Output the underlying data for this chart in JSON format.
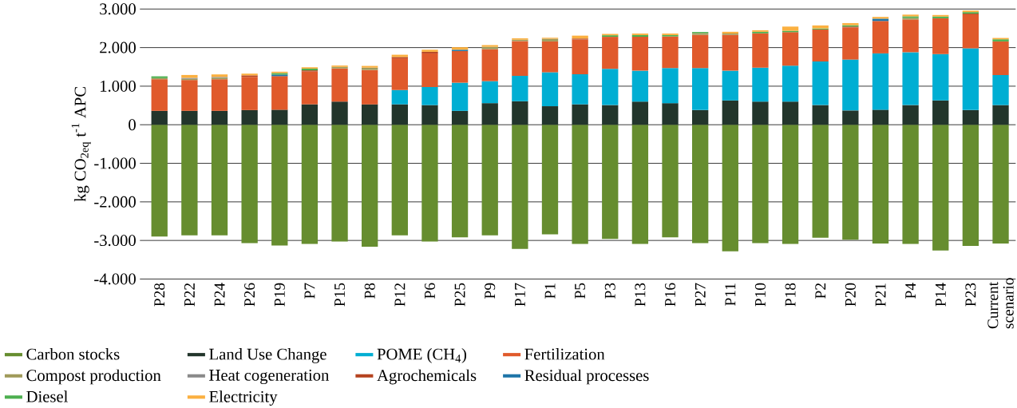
{
  "chart_data": {
    "type": "bar",
    "stacked": true,
    "ylabel": "kg CO$_{2eq}$ t$^{-1}$ APC",
    "categories": [
      "P28",
      "P22",
      "P24",
      "P26",
      "P19",
      "P7",
      "P15",
      "P8",
      "P12",
      "P6",
      "P25",
      "P9",
      "P17",
      "P1",
      "P5",
      "P3",
      "P13",
      "P16",
      "P27",
      "P11",
      "P10",
      "P18",
      "P2",
      "P20",
      "P21",
      "P4",
      "P14",
      "P23",
      "Current scenario"
    ],
    "series": [
      {
        "name": "Carbon stocks",
        "color": "#668d2f",
        "values": [
          -2900,
          -2870,
          -2870,
          -3070,
          -3130,
          -3090,
          -3030,
          -3160,
          -2870,
          -3030,
          -2920,
          -2870,
          -3220,
          -2840,
          -3090,
          -2960,
          -3090,
          -2920,
          -3070,
          -3280,
          -3070,
          -3090,
          -2930,
          -2980,
          -3080,
          -3090,
          -3260,
          -3140,
          -3080
        ]
      },
      {
        "name": "Land Use Change",
        "color": "#22352b",
        "values": [
          360,
          360,
          360,
          380,
          390,
          530,
          600,
          530,
          530,
          510,
          360,
          560,
          610,
          480,
          530,
          510,
          600,
          560,
          380,
          630,
          600,
          600,
          510,
          370,
          390,
          510,
          630,
          380,
          510
        ]
      },
      {
        "name": "POME (CH$_{4}$)",
        "color": "#00aed3",
        "values": [
          null,
          null,
          null,
          null,
          null,
          null,
          null,
          null,
          370,
          470,
          730,
          570,
          660,
          880,
          780,
          940,
          800,
          910,
          1090,
          770,
          880,
          930,
          1130,
          1320,
          1460,
          1370,
          1200,
          1600,
          780
        ]
      },
      {
        "name": "Fertilization",
        "color": "#e05a2b",
        "values": [
          820,
          800,
          820,
          860,
          870,
          850,
          860,
          890,
          820,
          870,
          820,
          830,
          900,
          800,
          900,
          830,
          880,
          820,
          860,
          930,
          890,
          870,
          830,
          830,
          840,
          850,
          930,
          880,
          870
        ]
      },
      {
        "name": "Compost production",
        "color": "#a09a5a",
        "values": [
          30,
          30,
          40,
          null,
          null,
          null,
          40,
          60,
          null,
          null,
          null,
          60,
          35,
          70,
          null,
          null,
          null,
          null,
          45,
          35,
          null,
          null,
          null,
          null,
          null,
          40,
          null,
          null,
          null
        ]
      },
      {
        "name": "Heat cogeneration",
        "color": "#8a8a8a",
        "values": [
          null,
          25,
          20,
          null,
          null,
          null,
          null,
          null,
          null,
          null,
          null,
          null,
          null,
          null,
          null,
          null,
          null,
          null,
          null,
          null,
          null,
          null,
          null,
          null,
          null,
          null,
          null,
          null,
          null
        ]
      },
      {
        "name": "Agrochemicals",
        "color": "#b5431f",
        "values": [
          null,
          null,
          null,
          40,
          null,
          30,
          null,
          null,
          35,
          40,
          null,
          null,
          null,
          null,
          25,
          null,
          null,
          null,
          null,
          null,
          null,
          null,
          null,
          25,
          null,
          null,
          null,
          20,
          null
        ]
      },
      {
        "name": "Residual processes",
        "color": "#1e75a8",
        "values": [
          null,
          null,
          null,
          null,
          40,
          null,
          null,
          null,
          null,
          null,
          35,
          null,
          null,
          null,
          null,
          null,
          null,
          null,
          null,
          null,
          null,
          null,
          null,
          null,
          60,
          null,
          null,
          null,
          null
        ]
      },
      {
        "name": "Diesel",
        "color": "#4caf4f",
        "values": [
          45,
          null,
          null,
          null,
          40,
          45,
          null,
          null,
          null,
          null,
          null,
          null,
          null,
          null,
          null,
          40,
          45,
          35,
          30,
          null,
          40,
          35,
          25,
          35,
          null,
          40,
          45,
          40,
          55
        ]
      },
      {
        "name": "Electricity",
        "color": "#fbb040",
        "values": [
          null,
          75,
          65,
          45,
          35,
          35,
          35,
          45,
          60,
          55,
          65,
          45,
          35,
          25,
          75,
          35,
          40,
          40,
          null,
          45,
          40,
          110,
          80,
          55,
          45,
          45,
          40,
          40,
          35
        ]
      }
    ],
    "ylim": [
      -4000,
      3000
    ],
    "yticks": [
      {
        "value": -4000,
        "label": "-4.000"
      },
      {
        "value": -3000,
        "label": "-3.000"
      },
      {
        "value": -2000,
        "label": "-2.000"
      },
      {
        "value": -1000,
        "label": "-1.000"
      },
      0,
      {
        "value": 1000,
        "label": "1.000"
      },
      {
        "value": 2000,
        "label": "2.000"
      },
      {
        "value": 3000,
        "label": "3.000"
      }
    ],
    "grid": "y",
    "legend": "bottom"
  }
}
